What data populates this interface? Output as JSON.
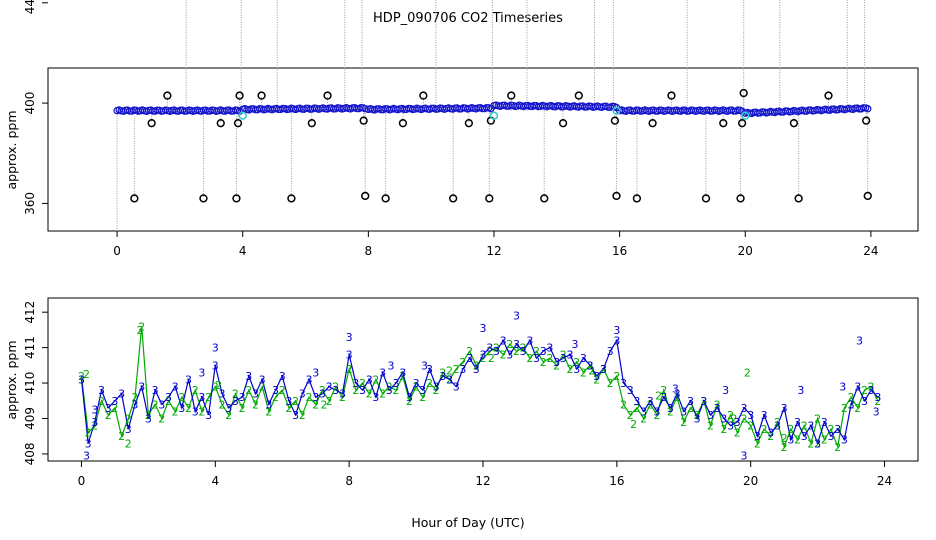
{
  "chart_data": [
    {
      "type": "line",
      "title": "HDP_090706  CO2 Timeseries",
      "xlabel": "",
      "ylabel": "approx. ppm",
      "xlim": [
        -2.2,
        25.5
      ],
      "ylim": [
        349,
        414
      ],
      "x_ticks": [
        0,
        4,
        8,
        12,
        16,
        20,
        24
      ],
      "y_ticks": [
        360,
        400,
        440
      ],
      "baseline_segments": [
        {
          "x": [
            0.0,
            3.9
          ],
          "y": [
            397.0,
            397.0
          ]
        },
        {
          "x": [
            4.0,
            7.9
          ],
          "y": [
            397.5,
            398.0
          ]
        },
        {
          "x": [
            8.0,
            11.9
          ],
          "y": [
            397.5,
            398.0
          ]
        },
        {
          "x": [
            12.0,
            15.9
          ],
          "y": [
            399.0,
            398.5
          ]
        },
        {
          "x": [
            16.0,
            19.9
          ],
          "y": [
            397.0,
            397.0
          ]
        },
        {
          "x": [
            20.0,
            23.9
          ],
          "y": [
            396.0,
            398.0
          ]
        }
      ],
      "high_outliers": {
        "x": [
          2.2,
          3.95,
          5.1,
          7.25,
          7.8,
          10.15,
          11.95,
          13.05,
          15.2,
          15.8,
          18.15,
          19.95,
          21.1,
          23.25,
          23.8
        ],
        "y": [
          473,
          474,
          473,
          473,
          473,
          473,
          474,
          473,
          473,
          473,
          473,
          474,
          473,
          473,
          472
        ]
      },
      "low_outliers": {
        "x": [
          0.55,
          2.75,
          3.8,
          5.55,
          7.9,
          8.55,
          10.7,
          11.85,
          13.6,
          15.9,
          16.55,
          18.75,
          19.85,
          21.7,
          23.9
        ],
        "y": [
          362,
          362,
          362,
          362,
          363,
          362,
          362,
          362,
          362,
          363,
          362,
          362,
          362,
          362,
          363
        ]
      },
      "mid_outliers": {
        "x": [
          1.1,
          1.6,
          3.3,
          3.85,
          3.9,
          4.6,
          6.2,
          6.7,
          7.85,
          9.1,
          9.75,
          11.2,
          11.9,
          12.55,
          14.2,
          14.7,
          15.85,
          17.05,
          17.65,
          19.3,
          19.9,
          19.95,
          21.55,
          22.65,
          23.85
        ],
        "y": [
          392,
          403,
          392,
          392,
          403,
          403,
          392,
          403,
          393,
          392,
          403,
          392,
          393,
          403,
          392,
          403,
          393,
          392,
          403,
          392,
          392,
          404,
          392,
          403,
          393
        ]
      },
      "cyan_points": {
        "x": [
          4.0,
          12.0,
          20.0,
          15.9
        ],
        "y": [
          395,
          395,
          395,
          397
        ]
      }
    },
    {
      "type": "line",
      "title": "",
      "xlabel": "Hour of Day (UTC)",
      "ylabel": "approx. ppm",
      "xlim": [
        -1.0,
        25.0
      ],
      "ylim": [
        407.8,
        412.4
      ],
      "x_ticks": [
        0,
        4,
        8,
        12,
        16,
        20,
        24
      ],
      "y_ticks": [
        408,
        409,
        410,
        411,
        412
      ],
      "series": [
        {
          "name": "3",
          "color": "#0000CC",
          "x": [
            0.0,
            0.2,
            0.4,
            0.6,
            0.8,
            1.0,
            1.2,
            1.4,
            1.6,
            1.8,
            2.0,
            2.2,
            2.4,
            2.6,
            2.8,
            3.0,
            3.2,
            3.4,
            3.6,
            3.8,
            4.0,
            4.2,
            4.4,
            4.6,
            4.8,
            5.0,
            5.2,
            5.4,
            5.6,
            5.8,
            6.0,
            6.2,
            6.4,
            6.6,
            6.8,
            7.0,
            7.2,
            7.4,
            7.6,
            7.8,
            8.0,
            8.2,
            8.4,
            8.6,
            8.8,
            9.0,
            9.2,
            9.4,
            9.6,
            9.8,
            10.0,
            10.2,
            10.4,
            10.6,
            10.8,
            11.0,
            11.2,
            11.4,
            11.6,
            11.8,
            12.0,
            12.2,
            12.4,
            12.6,
            12.8,
            13.0,
            13.2,
            13.4,
            13.6,
            13.8,
            14.0,
            14.2,
            14.4,
            14.6,
            14.8,
            15.0,
            15.2,
            15.4,
            15.6,
            15.8,
            16.0,
            16.2,
            16.4,
            16.6,
            16.8,
            17.0,
            17.2,
            17.4,
            17.6,
            17.8,
            18.0,
            18.2,
            18.4,
            18.6,
            18.8,
            19.0,
            19.2,
            19.4,
            19.6,
            19.8,
            20.0,
            20.2,
            20.4,
            20.6,
            20.8,
            21.0,
            21.2,
            21.4,
            21.6,
            21.8,
            22.0,
            22.2,
            22.4,
            22.6,
            22.8,
            23.0,
            23.2,
            23.4,
            23.6,
            23.8
          ],
          "y": [
            410.1,
            408.3,
            408.9,
            409.8,
            409.3,
            409.5,
            409.7,
            408.7,
            409.4,
            409.9,
            409.0,
            409.8,
            409.4,
            409.6,
            409.9,
            409.3,
            410.1,
            409.2,
            409.6,
            409.1,
            410.5,
            409.7,
            409.3,
            409.5,
            409.6,
            410.2,
            409.7,
            410.1,
            409.4,
            409.8,
            410.2,
            409.5,
            409.1,
            409.7,
            410.1,
            409.6,
            409.7,
            409.9,
            409.8,
            409.7,
            410.8,
            410.0,
            409.8,
            410.1,
            409.6,
            410.3,
            409.8,
            410.0,
            410.3,
            409.6,
            410.0,
            409.8,
            410.4,
            409.9,
            410.2,
            410.1,
            409.9,
            410.4,
            410.7,
            410.4,
            410.8,
            411.0,
            410.9,
            411.2,
            410.8,
            411.1,
            410.9,
            411.2,
            410.7,
            410.9,
            411.0,
            410.6,
            410.7,
            410.8,
            410.4,
            410.7,
            410.5,
            410.2,
            410.4,
            410.9,
            411.2,
            410.0,
            409.8,
            409.5,
            409.2,
            409.5,
            409.2,
            409.6,
            409.3,
            409.7,
            409.2,
            409.5,
            409.0,
            409.5,
            409.1,
            409.3,
            409.0,
            408.8,
            408.9,
            409.3,
            409.1,
            408.5,
            409.1,
            408.6,
            408.8,
            409.3,
            408.4,
            408.9,
            408.5,
            408.8,
            408.3,
            408.9,
            408.5,
            408.7,
            408.4,
            409.4,
            409.9,
            409.5,
            409.8,
            409.6
          ],
          "label_points": {
            "x": [
              0.15,
              0.4,
              3.6,
              4.0,
              7.0,
              8.0,
              9.25,
              10.25,
              12.0,
              13.0,
              14.75,
              16.0,
              17.75,
              19.25,
              19.8,
              21.5,
              22.75,
              23.25,
              23.75
            ],
            "y": [
              407.95,
              409.25,
              410.3,
              411.0,
              410.3,
              411.3,
              410.5,
              410.5,
              411.55,
              411.9,
              411.1,
              411.5,
              409.85,
              409.8,
              407.95,
              409.8,
              409.9,
              411.2,
              409.2
            ]
          }
        },
        {
          "name": "2",
          "color": "#00AA00",
          "x": [
            0.0,
            0.2,
            0.4,
            0.6,
            0.8,
            1.0,
            1.2,
            1.4,
            1.6,
            1.8,
            2.0,
            2.2,
            2.4,
            2.6,
            2.8,
            3.0,
            3.2,
            3.4,
            3.6,
            3.8,
            4.0,
            4.2,
            4.4,
            4.6,
            4.8,
            5.0,
            5.2,
            5.4,
            5.6,
            5.8,
            6.0,
            6.2,
            6.4,
            6.6,
            6.8,
            7.0,
            7.2,
            7.4,
            7.6,
            7.8,
            8.0,
            8.2,
            8.4,
            8.6,
            8.8,
            9.0,
            9.2,
            9.4,
            9.6,
            9.8,
            10.0,
            10.2,
            10.4,
            10.6,
            10.8,
            11.0,
            11.2,
            11.4,
            11.6,
            11.8,
            12.0,
            12.2,
            12.4,
            12.6,
            12.8,
            13.0,
            13.2,
            13.4,
            13.6,
            13.8,
            14.0,
            14.2,
            14.4,
            14.6,
            14.8,
            15.0,
            15.2,
            15.4,
            15.6,
            15.8,
            16.0,
            16.2,
            16.4,
            16.6,
            16.8,
            17.0,
            17.2,
            17.4,
            17.6,
            17.8,
            18.0,
            18.2,
            18.4,
            18.6,
            18.8,
            19.0,
            19.2,
            19.4,
            19.6,
            19.8,
            20.0,
            20.2,
            20.4,
            20.6,
            20.8,
            21.0,
            21.2,
            21.4,
            21.6,
            21.8,
            22.0,
            22.2,
            22.4,
            22.6,
            22.8,
            23.0,
            23.2,
            23.4,
            23.6,
            23.8
          ],
          "y": [
            410.2,
            408.6,
            408.8,
            409.5,
            409.1,
            409.3,
            408.5,
            409.0,
            409.6,
            411.6,
            409.1,
            409.4,
            409.0,
            409.5,
            409.2,
            409.6,
            409.3,
            409.8,
            409.2,
            409.6,
            409.9,
            409.4,
            409.1,
            409.7,
            409.3,
            409.8,
            409.4,
            409.9,
            409.2,
            409.6,
            409.8,
            409.3,
            409.5,
            409.1,
            409.6,
            409.4,
            409.8,
            409.5,
            409.9,
            409.6,
            410.4,
            409.8,
            410.0,
            409.7,
            410.1,
            409.7,
            409.9,
            409.8,
            410.2,
            409.5,
            409.9,
            409.6,
            410.0,
            409.8,
            410.3,
            410.1,
            410.4,
            410.6,
            410.9,
            410.5,
            410.7,
            410.9,
            411.0,
            410.8,
            411.1,
            410.9,
            411.0,
            410.7,
            410.9,
            410.6,
            410.7,
            410.5,
            410.8,
            410.4,
            410.6,
            410.3,
            410.5,
            410.1,
            410.4,
            410.0,
            410.2,
            409.4,
            409.1,
            409.3,
            409.0,
            409.4,
            409.1,
            409.8,
            409.2,
            409.6,
            408.9,
            409.3,
            409.1,
            409.5,
            408.8,
            409.4,
            408.7,
            409.1,
            408.6,
            409.0,
            408.8,
            408.3,
            408.7,
            408.5,
            408.9,
            408.2,
            408.7,
            408.4,
            408.8,
            408.3,
            409.0,
            408.4,
            408.7,
            408.2,
            409.3,
            409.6,
            409.3,
            409.8,
            409.9,
            409.5
          ],
          "label_points": {
            "x": [
              0.15,
              1.4,
              1.75,
              4.1,
              7.25,
              8.0,
              11.0,
              12.25,
              15.25,
              16.5,
              17.25,
              19.5,
              19.9,
              21.0,
              22.0,
              23.0
            ],
            "y": [
              410.25,
              408.3,
              411.5,
              409.95,
              409.4,
              410.4,
              410.35,
              410.7,
              410.35,
              408.85,
              409.65,
              409.0,
              410.3,
              408.45,
              408.3,
              409.4
            ]
          }
        }
      ]
    }
  ]
}
